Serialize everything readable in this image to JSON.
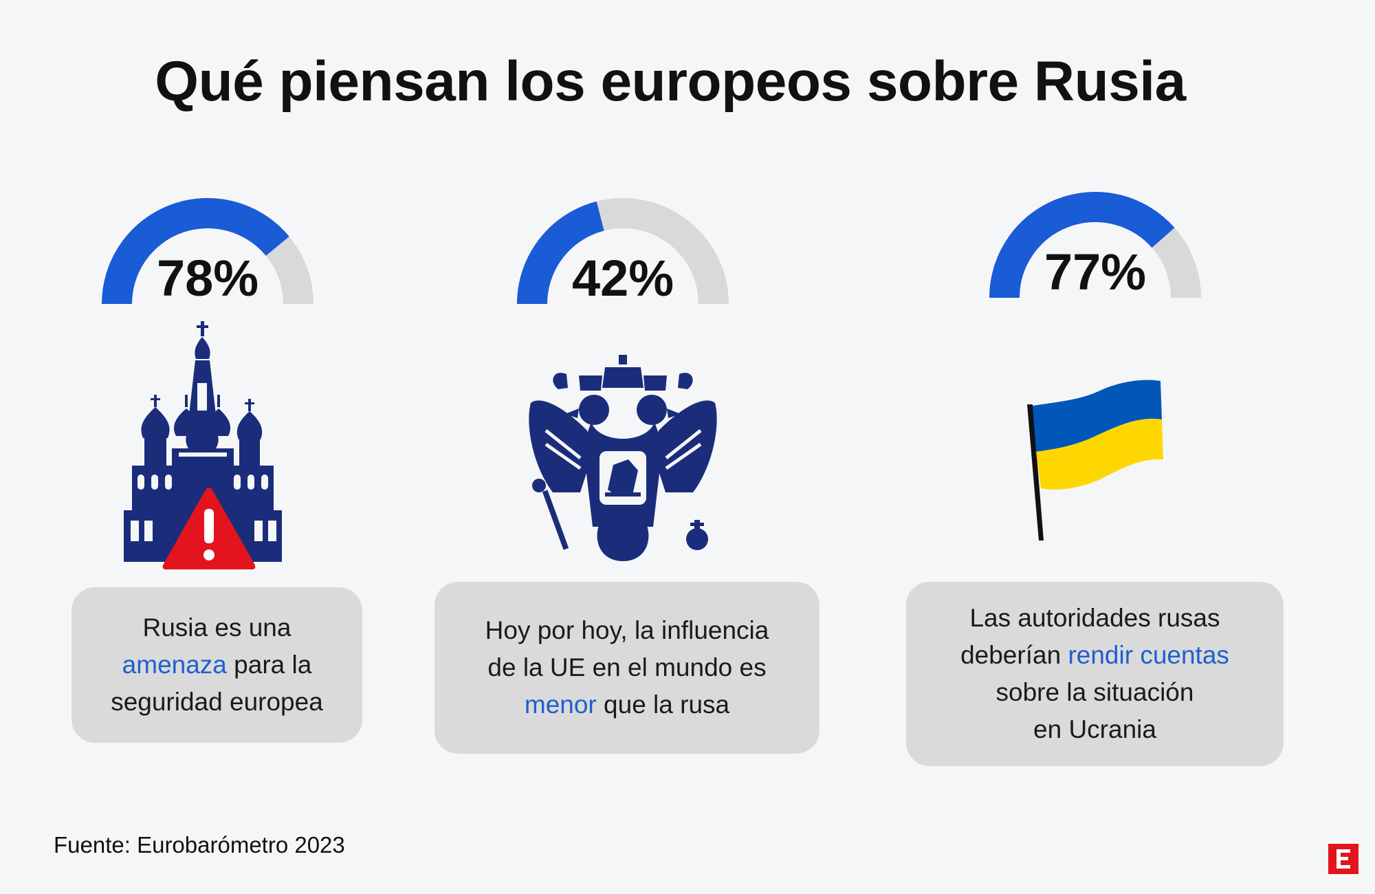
{
  "title": "Qué piensan los europeos sobre Rusia",
  "source": "Fuente: Eurobarómetro 2023",
  "colors": {
    "accent": "#1a5bd6",
    "track": "#d9d9d9",
    "highlight": "#1f5fcf",
    "alert_red": "#e3141d",
    "navy": "#1b2d7a",
    "flag_blue": "#0057b7",
    "flag_yellow": "#ffd700"
  },
  "chart_data": {
    "type": "gauge",
    "series": [
      {
        "value": 78,
        "label": "78%"
      },
      {
        "value": 42,
        "label": "42%"
      },
      {
        "value": 77,
        "label": "77%"
      }
    ],
    "ylim": [
      0,
      100
    ]
  },
  "cards": [
    {
      "lines": [
        [
          "Rusia es una"
        ],
        [
          {
            "hl": "amenaza"
          },
          " para la"
        ],
        [
          "seguridad europea"
        ]
      ],
      "icon": "kremlin-cathedral-warning-icon"
    },
    {
      "lines": [
        [
          "Hoy por hoy, la influencia"
        ],
        [
          "de la UE en el mundo es"
        ],
        [
          {
            "hl": "menor"
          },
          " que la rusa"
        ]
      ],
      "icon": "russian-coat-of-arms-icon"
    },
    {
      "lines": [
        [
          "Las autoridades rusas"
        ],
        [
          "deberían ",
          {
            "hl": "rendir cuentas"
          }
        ],
        [
          "sobre la situación"
        ],
        [
          "en Ucrania"
        ]
      ],
      "icon": "ukraine-flag-icon"
    }
  ]
}
